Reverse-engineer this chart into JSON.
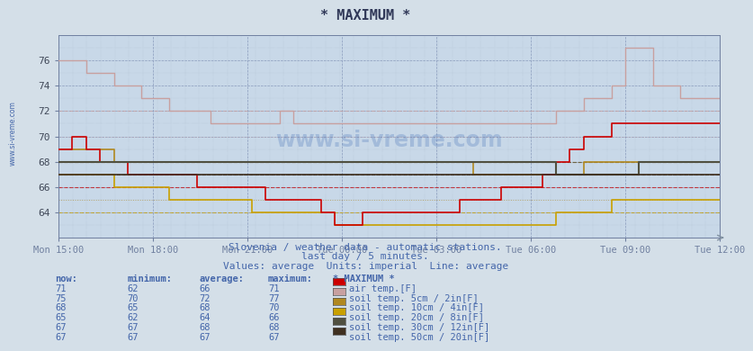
{
  "title": "* MAXIMUM *",
  "background_color": "#d4dfe8",
  "plot_bg_color": "#c8d8e8",
  "subtitle1": "Slovenia / weather data - automatic stations.",
  "subtitle2": "last day / 5 minutes.",
  "subtitle3": "Values: average  Units: imperial  Line: average",
  "text_color": "#4466aa",
  "ylim": [
    62,
    78
  ],
  "yticks": [
    64,
    66,
    68,
    70,
    72,
    74,
    76
  ],
  "xtick_labels": [
    "Mon 15:00",
    "Mon 18:00",
    "Mon 21:00",
    "Tue 00:00",
    "Tue 03:00",
    "Tue 06:00",
    "Tue 09:00",
    "Tue 12:00"
  ],
  "series": [
    {
      "label": "air temp.[F]",
      "color": "#cc0000",
      "now": 71,
      "min": 62,
      "avg": 66,
      "max": 71,
      "swatch": "#cc0000"
    },
    {
      "label": "soil temp. 5cm / 2in[F]",
      "color": "#c8a0a0",
      "now": 75,
      "min": 70,
      "avg": 72,
      "max": 77,
      "swatch": "#c8a0a0"
    },
    {
      "label": "soil temp. 10cm / 4in[F]",
      "color": "#b08820",
      "now": 68,
      "min": 65,
      "avg": 68,
      "max": 70,
      "swatch": "#b08820"
    },
    {
      "label": "soil temp. 20cm / 8in[F]",
      "color": "#c8a000",
      "now": 65,
      "min": 62,
      "avg": 64,
      "max": 66,
      "swatch": "#c8a000"
    },
    {
      "label": "soil temp. 30cm / 12in[F]",
      "color": "#505040",
      "now": 67,
      "min": 67,
      "avg": 68,
      "max": 68,
      "swatch": "#505040"
    },
    {
      "label": "soil temp. 50cm / 20in[F]",
      "color": "#403020",
      "now": 67,
      "min": 67,
      "avg": 67,
      "max": 67,
      "swatch": "#403020"
    }
  ],
  "watermark": "www.si-vreme.com",
  "side_text": "www.si-vreme.com",
  "table_header": [
    "now:",
    "minimum:",
    "average:",
    "maximum:",
    "* MAXIMUM *"
  ]
}
